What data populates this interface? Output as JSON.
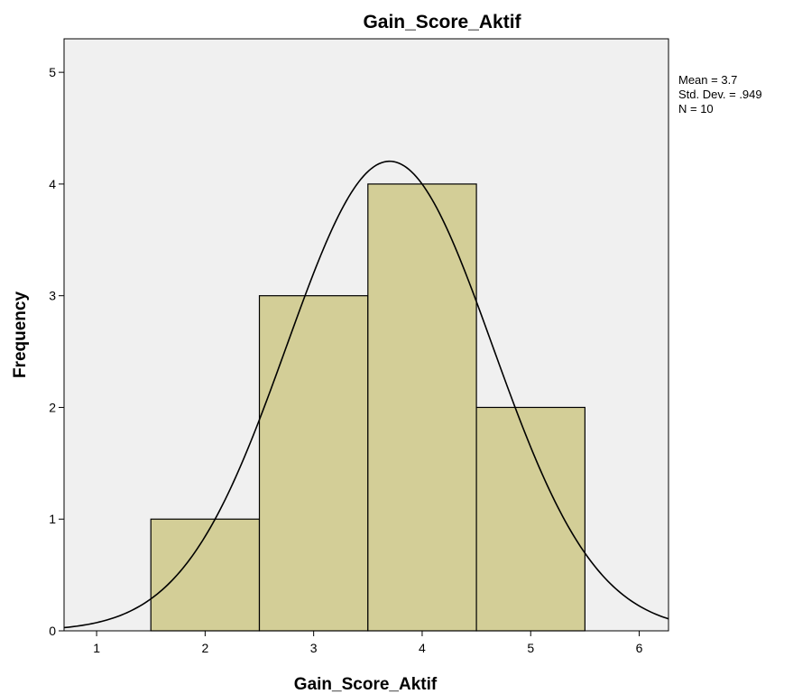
{
  "chart_data": {
    "type": "bar",
    "title": "Gain_Score_Aktif",
    "xlabel": "Gain_Score_Aktif",
    "ylabel": "Frequency",
    "xlim": [
      0.7,
      6.27
    ],
    "ylim": [
      0,
      5.3
    ],
    "x_ticks": [
      "1",
      "2",
      "3",
      "4",
      "5",
      "6"
    ],
    "y_ticks": [
      "0",
      "1",
      "2",
      "3",
      "4",
      "5"
    ],
    "bins": [
      {
        "start": 1.5,
        "end": 2.5,
        "count": 1
      },
      {
        "start": 2.5,
        "end": 3.5,
        "count": 3
      },
      {
        "start": 3.5,
        "end": 4.5,
        "count": 4
      },
      {
        "start": 4.5,
        "end": 5.5,
        "count": 2
      }
    ],
    "normal_curve": {
      "mean": 3.7,
      "sd": 0.949,
      "n": 10,
      "bin_width": 1
    },
    "stats": [
      "Mean = 3.7",
      "Std. Dev. = .949",
      "N = 10"
    ],
    "grid": false,
    "colors": {
      "plot_bg": "#f0f0f0",
      "bar_fill": "#d3ce97",
      "bar_stroke": "#000000",
      "curve": "#000000"
    }
  }
}
